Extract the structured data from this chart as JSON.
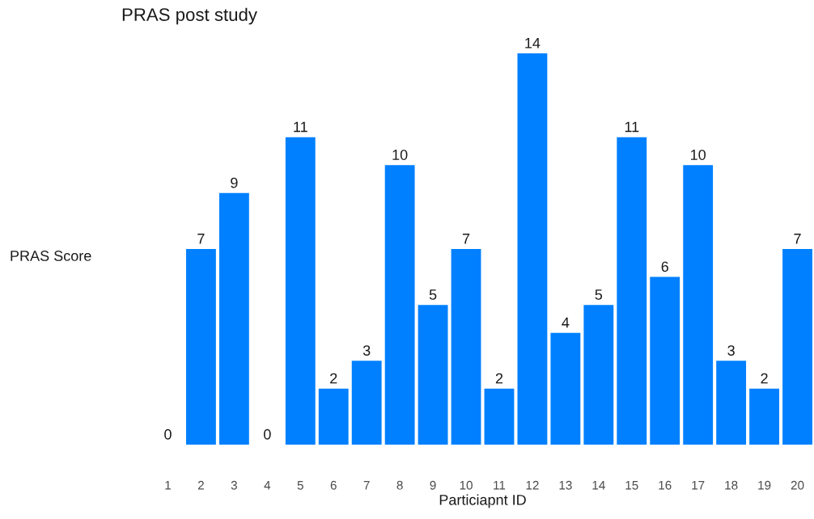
{
  "chart_data": {
    "type": "bar",
    "title": "PRAS post study",
    "xlabel": "Particiapnt ID",
    "ylabel": "PRAS Score",
    "categories": [
      "1",
      "2",
      "3",
      "4",
      "5",
      "6",
      "7",
      "8",
      "9",
      "10",
      "11",
      "12",
      "13",
      "14",
      "15",
      "16",
      "17",
      "18",
      "19",
      "20"
    ],
    "values": [
      0,
      7,
      9,
      0,
      11,
      2,
      3,
      10,
      5,
      7,
      2,
      14,
      4,
      5,
      11,
      6,
      10,
      3,
      2,
      7
    ],
    "color": "#0080ff",
    "data_labels": true,
    "grid": false,
    "legend": false,
    "tick_labels": "x"
  }
}
